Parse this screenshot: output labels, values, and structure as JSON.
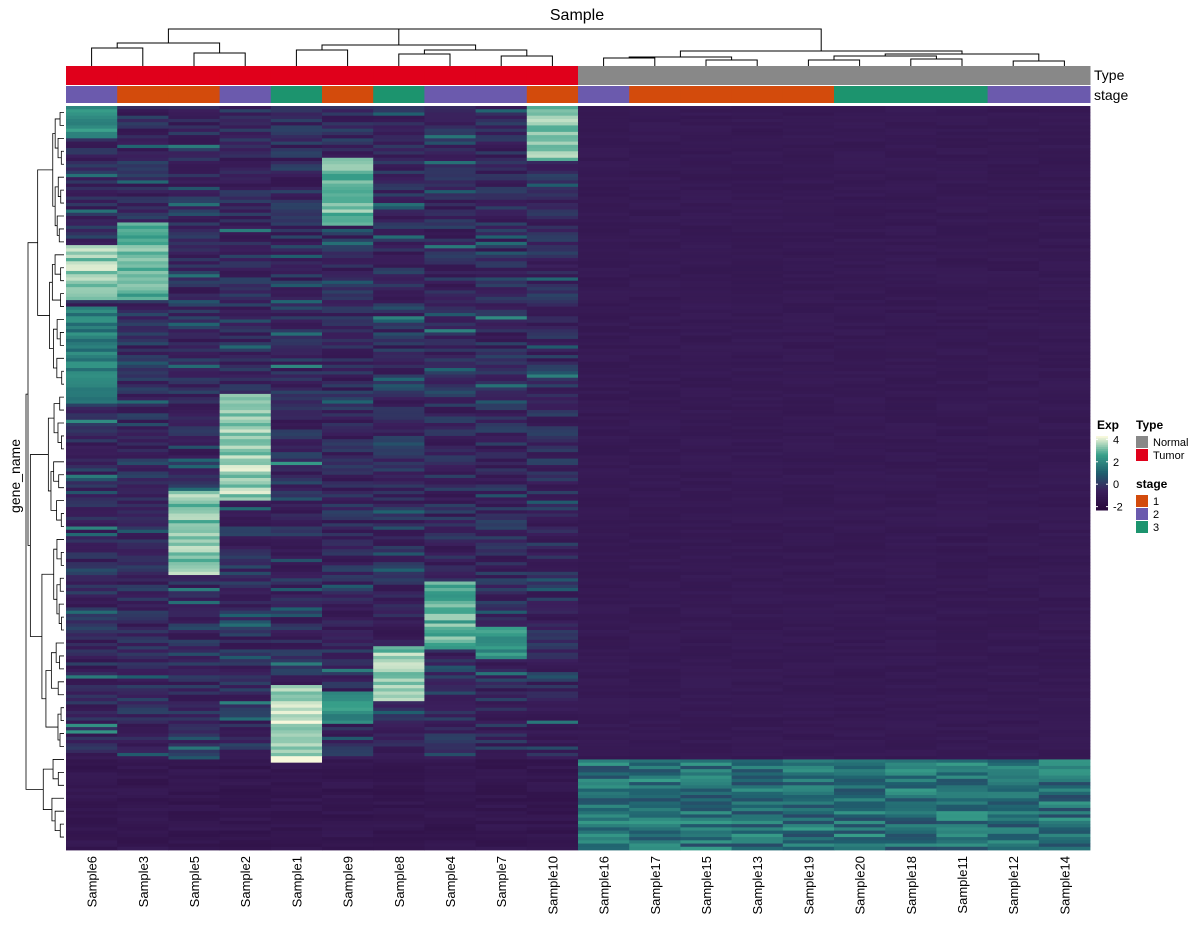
{
  "chart_data": {
    "type": "heatmap",
    "title": "Sample",
    "ylabel": "gene_name",
    "columns": [
      "Sample6",
      "Sample3",
      "Sample5",
      "Sample2",
      "Sample1",
      "Sample9",
      "Sample8",
      "Sample4",
      "Sample7",
      "Sample10",
      "Sample16",
      "Sample17",
      "Sample15",
      "Sample13",
      "Sample19",
      "Sample20",
      "Sample18",
      "Sample11",
      "Sample12",
      "Sample14"
    ],
    "annotations": {
      "Type": {
        "label": "Type",
        "values": [
          "Tumor",
          "Tumor",
          "Tumor",
          "Tumor",
          "Tumor",
          "Tumor",
          "Tumor",
          "Tumor",
          "Tumor",
          "Tumor",
          "Normal",
          "Normal",
          "Normal",
          "Normal",
          "Normal",
          "Normal",
          "Normal",
          "Normal",
          "Normal",
          "Normal"
        ]
      },
      "stage": {
        "label": "stage",
        "values": [
          "2",
          "1",
          "1",
          "2",
          "3",
          "1",
          "3",
          "2",
          "2",
          "1",
          "2",
          "1",
          "1",
          "1",
          "1",
          "3",
          "3",
          "3",
          "2",
          "2"
        ]
      }
    },
    "color_scale": {
      "legend_title": "Exp",
      "ticks": [
        4,
        2,
        0,
        -2
      ],
      "range": [
        -2.3,
        4.3
      ],
      "stops": [
        "#2a0a3d",
        "#3b1f5c",
        "#1f5f6e",
        "#38a08a",
        "#f7f8dc"
      ]
    },
    "legends": [
      {
        "title": "Type",
        "items": [
          {
            "label": "Normal",
            "color": "#888888"
          },
          {
            "label": "Tumor",
            "color": "#e0001b"
          }
        ]
      },
      {
        "title": "stage",
        "items": [
          {
            "label": "1",
            "color": "#d34b0c"
          },
          {
            "label": "2",
            "color": "#6b5aad"
          },
          {
            "label": "3",
            "color": "#1c946e"
          }
        ]
      }
    ],
    "row_blocks": {
      "_note_units": "fraction of gene rows (0=top, 1=bottom)",
      "blocks": [
        {
          "col": "Sample10",
          "from": 0.0,
          "to": 0.07,
          "level": 3.6
        },
        {
          "col": "Sample6",
          "from": 0.0,
          "to": 0.04,
          "level": 2.5
        },
        {
          "col": "Sample9",
          "from": 0.07,
          "to": 0.16,
          "level": 3.4
        },
        {
          "col": "Sample3",
          "from": 0.16,
          "to": 0.26,
          "level": 3.2
        },
        {
          "col": "Sample6",
          "from": 0.19,
          "to": 0.26,
          "level": 3.7
        },
        {
          "col": "Sample6",
          "from": 0.27,
          "to": 0.4,
          "level": 2.0
        },
        {
          "col": "Sample2",
          "from": 0.39,
          "to": 0.53,
          "level": 3.8
        },
        {
          "col": "Sample5",
          "from": 0.52,
          "to": 0.63,
          "level": 3.6
        },
        {
          "col": "Sample4",
          "from": 0.64,
          "to": 0.73,
          "level": 3.2
        },
        {
          "col": "Sample7",
          "from": 0.7,
          "to": 0.74,
          "level": 2.4
        },
        {
          "col": "Sample8",
          "from": 0.73,
          "to": 0.8,
          "level": 3.6
        },
        {
          "col": "Sample1",
          "from": 0.78,
          "to": 0.88,
          "level": 4.0
        },
        {
          "col": "Sample9",
          "from": 0.79,
          "to": 0.83,
          "level": 2.4
        }
      ],
      "normal_block": {
        "from": 0.88,
        "to": 1.0,
        "level": 1.8,
        "columns": [
          "Sample16",
          "Sample17",
          "Sample15",
          "Sample13",
          "Sample19",
          "Sample20",
          "Sample18",
          "Sample11",
          "Sample12",
          "Sample14"
        ]
      }
    }
  }
}
